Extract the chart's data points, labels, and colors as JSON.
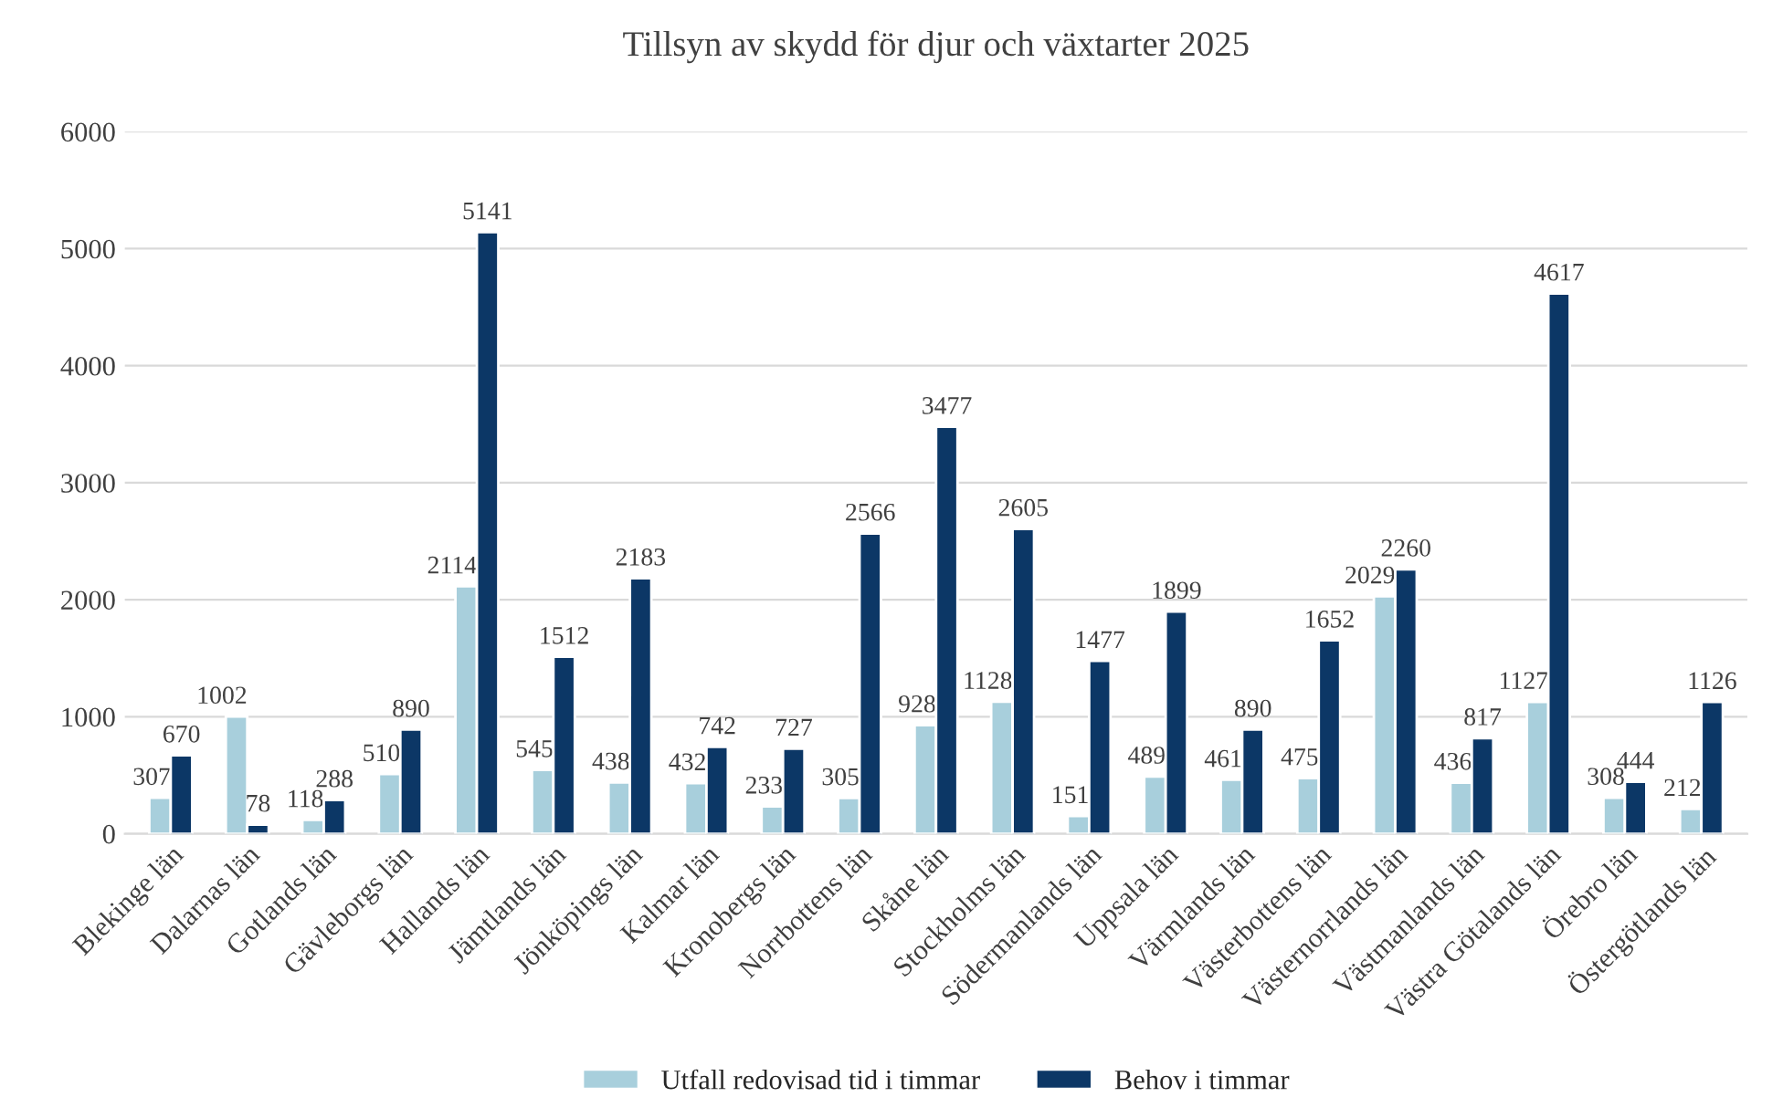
{
  "chart_data": {
    "type": "bar",
    "title": "Tillsyn av skydd för djur och växtarter 2025",
    "categories": [
      "Blekinge län",
      "Dalarnas län",
      "Gotlands län",
      "Gävleborgs län",
      "Hallands län",
      "Jämtlands län",
      "Jönköpings län",
      "Kalmar län",
      "Kronobergs län",
      "Norrbottens län",
      "Skåne län",
      "Stockholms län",
      "Södermanlands län",
      "Uppsala län",
      "Värmlands län",
      "Västerbottens län",
      "Västernorrlands län",
      "Västmanlands län",
      "Västra Götalands län",
      "Örebro län",
      "Östergötlands län"
    ],
    "series": [
      {
        "name": "Utfall redovisad tid i timmar",
        "color": "#a8cfdc",
        "values": [
          307,
          1002,
          118,
          510,
          2114,
          545,
          438,
          432,
          233,
          305,
          928,
          1128,
          151,
          489,
          461,
          475,
          2029,
          436,
          1127,
          308,
          212
        ]
      },
      {
        "name": "Behov i timmar",
        "color": "#0c3766",
        "values": [
          670,
          78,
          288,
          890,
          5141,
          1512,
          2183,
          742,
          727,
          2566,
          3477,
          2605,
          1477,
          1899,
          890,
          1652,
          2260,
          817,
          4617,
          444,
          1126
        ]
      }
    ],
    "ylim": [
      0,
      6000
    ],
    "yticks": [
      0,
      1000,
      2000,
      3000,
      4000,
      5000,
      6000
    ],
    "grid": "y",
    "legend": "bottom",
    "data_labels": true
  }
}
